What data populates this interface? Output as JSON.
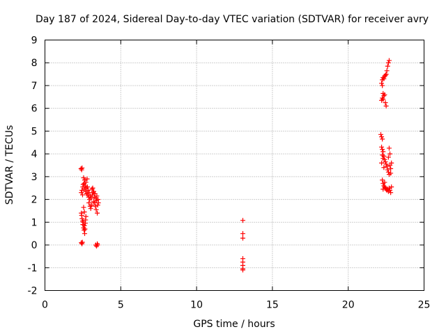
{
  "chart_data": {
    "type": "scatter",
    "title": "Day 187 of 2024, Sidereal Day-to-day VTEC variation (SDTVAR) for receiver avry",
    "xlabel": "GPS time / hours",
    "ylabel": "SDTVAR / TECUs",
    "xlim": [
      0,
      25
    ],
    "ylim": [
      -2,
      9
    ],
    "xticks": [
      0,
      5,
      10,
      15,
      20,
      25
    ],
    "yticks": [
      -2,
      -1,
      0,
      1,
      2,
      3,
      4,
      5,
      6,
      7,
      8,
      9
    ],
    "grid": true,
    "marker": "+",
    "series": [
      {
        "name": "SDTVAR",
        "color": "#ff0000",
        "points": [
          [
            2.38,
            3.35
          ],
          [
            2.42,
            3.3
          ],
          [
            2.45,
            3.38
          ],
          [
            2.4,
            2.3
          ],
          [
            2.44,
            2.4
          ],
          [
            2.48,
            2.2
          ],
          [
            2.5,
            2.55
          ],
          [
            2.52,
            2.65
          ],
          [
            2.55,
            2.95
          ],
          [
            2.58,
            2.7
          ],
          [
            2.6,
            2.45
          ],
          [
            2.62,
            2.85
          ],
          [
            2.65,
            2.6
          ],
          [
            2.68,
            2.35
          ],
          [
            2.7,
            2.75
          ],
          [
            2.72,
            2.5
          ],
          [
            2.75,
            2.25
          ],
          [
            2.78,
            2.9
          ],
          [
            2.8,
            2.55
          ],
          [
            2.82,
            2.2
          ],
          [
            2.85,
            2.4
          ],
          [
            2.88,
            2.1
          ],
          [
            2.9,
            1.85
          ],
          [
            2.92,
            2.3
          ],
          [
            2.95,
            2.0
          ],
          [
            2.98,
            1.7
          ],
          [
            3.0,
            2.15
          ],
          [
            3.02,
            1.6
          ],
          [
            3.05,
            2.05
          ],
          [
            3.08,
            1.75
          ],
          [
            3.1,
            2.45
          ],
          [
            3.12,
            2.2
          ],
          [
            3.15,
            2.5
          ],
          [
            3.18,
            2.3
          ],
          [
            3.2,
            1.9
          ],
          [
            3.22,
            2.35
          ],
          [
            3.25,
            2.1
          ],
          [
            3.28,
            1.85
          ],
          [
            3.3,
            2.25
          ],
          [
            3.32,
            1.7
          ],
          [
            3.35,
            2.05
          ],
          [
            3.38,
            1.55
          ],
          [
            3.4,
            1.95
          ],
          [
            3.42,
            2.15
          ],
          [
            3.45,
            1.4
          ],
          [
            3.48,
            1.75
          ],
          [
            3.5,
            2.0
          ],
          [
            3.52,
            1.85
          ],
          [
            2.4,
            1.4
          ],
          [
            2.42,
            1.3
          ],
          [
            2.45,
            1.15
          ],
          [
            2.48,
            1.05
          ],
          [
            2.5,
            0.9
          ],
          [
            2.52,
            1.0
          ],
          [
            2.55,
            0.75
          ],
          [
            2.58,
            0.65
          ],
          [
            2.6,
            0.85
          ],
          [
            2.62,
            0.5
          ],
          [
            2.64,
            0.7
          ],
          [
            2.66,
            0.95
          ],
          [
            2.68,
            1.1
          ],
          [
            2.7,
            1.25
          ],
          [
            2.55,
            1.65
          ],
          [
            2.6,
            1.45
          ],
          [
            2.4,
            0.1
          ],
          [
            2.44,
            0.05
          ],
          [
            2.47,
            0.12
          ],
          [
            3.35,
            0.0
          ],
          [
            3.4,
            -0.05
          ],
          [
            3.45,
            0.05
          ],
          [
            3.48,
            0.0
          ],
          [
            13.05,
            1.08
          ],
          [
            13.05,
            0.5
          ],
          [
            13.05,
            0.3
          ],
          [
            13.05,
            -0.6
          ],
          [
            13.05,
            -0.75
          ],
          [
            13.05,
            -0.9
          ],
          [
            13.05,
            -1.05
          ],
          [
            13.05,
            -1.1
          ],
          [
            22.7,
            8.1
          ],
          [
            22.65,
            8.0
          ],
          [
            22.6,
            7.85
          ],
          [
            22.55,
            7.65
          ],
          [
            22.5,
            7.5
          ],
          [
            22.45,
            7.45
          ],
          [
            22.4,
            7.4
          ],
          [
            22.35,
            7.3
          ],
          [
            22.3,
            7.35
          ],
          [
            22.25,
            7.25
          ],
          [
            22.2,
            7.1
          ],
          [
            22.25,
            7.0
          ],
          [
            22.3,
            6.65
          ],
          [
            22.35,
            6.55
          ],
          [
            22.4,
            6.6
          ],
          [
            22.25,
            6.45
          ],
          [
            22.2,
            6.35
          ],
          [
            22.3,
            6.4
          ],
          [
            22.45,
            6.25
          ],
          [
            22.5,
            6.1
          ],
          [
            22.15,
            4.85
          ],
          [
            22.2,
            4.75
          ],
          [
            22.25,
            4.65
          ],
          [
            22.2,
            4.3
          ],
          [
            22.25,
            4.2
          ],
          [
            22.3,
            4.1
          ],
          [
            22.35,
            3.9
          ],
          [
            22.4,
            3.75
          ],
          [
            22.45,
            3.65
          ],
          [
            22.5,
            3.55
          ],
          [
            22.55,
            3.45
          ],
          [
            22.25,
            3.95
          ],
          [
            22.3,
            3.8
          ],
          [
            22.2,
            3.6
          ],
          [
            22.35,
            3.4
          ],
          [
            22.6,
            3.3
          ],
          [
            22.65,
            3.2
          ],
          [
            22.7,
            3.1
          ],
          [
            22.75,
            3.5
          ],
          [
            22.8,
            3.35
          ],
          [
            22.85,
            3.6
          ],
          [
            22.7,
            4.25
          ],
          [
            22.75,
            4.0
          ],
          [
            22.65,
            3.85
          ],
          [
            22.8,
            3.15
          ],
          [
            22.25,
            2.85
          ],
          [
            22.3,
            2.7
          ],
          [
            22.35,
            2.6
          ],
          [
            22.4,
            2.55
          ],
          [
            22.45,
            2.5
          ],
          [
            22.5,
            2.45
          ],
          [
            22.55,
            2.4
          ],
          [
            22.6,
            2.45
          ],
          [
            22.65,
            2.35
          ],
          [
            22.7,
            2.5
          ],
          [
            22.75,
            2.4
          ],
          [
            22.8,
            2.3
          ],
          [
            22.85,
            2.55
          ],
          [
            22.3,
            2.45
          ],
          [
            22.4,
            2.75
          ]
        ]
      }
    ]
  }
}
